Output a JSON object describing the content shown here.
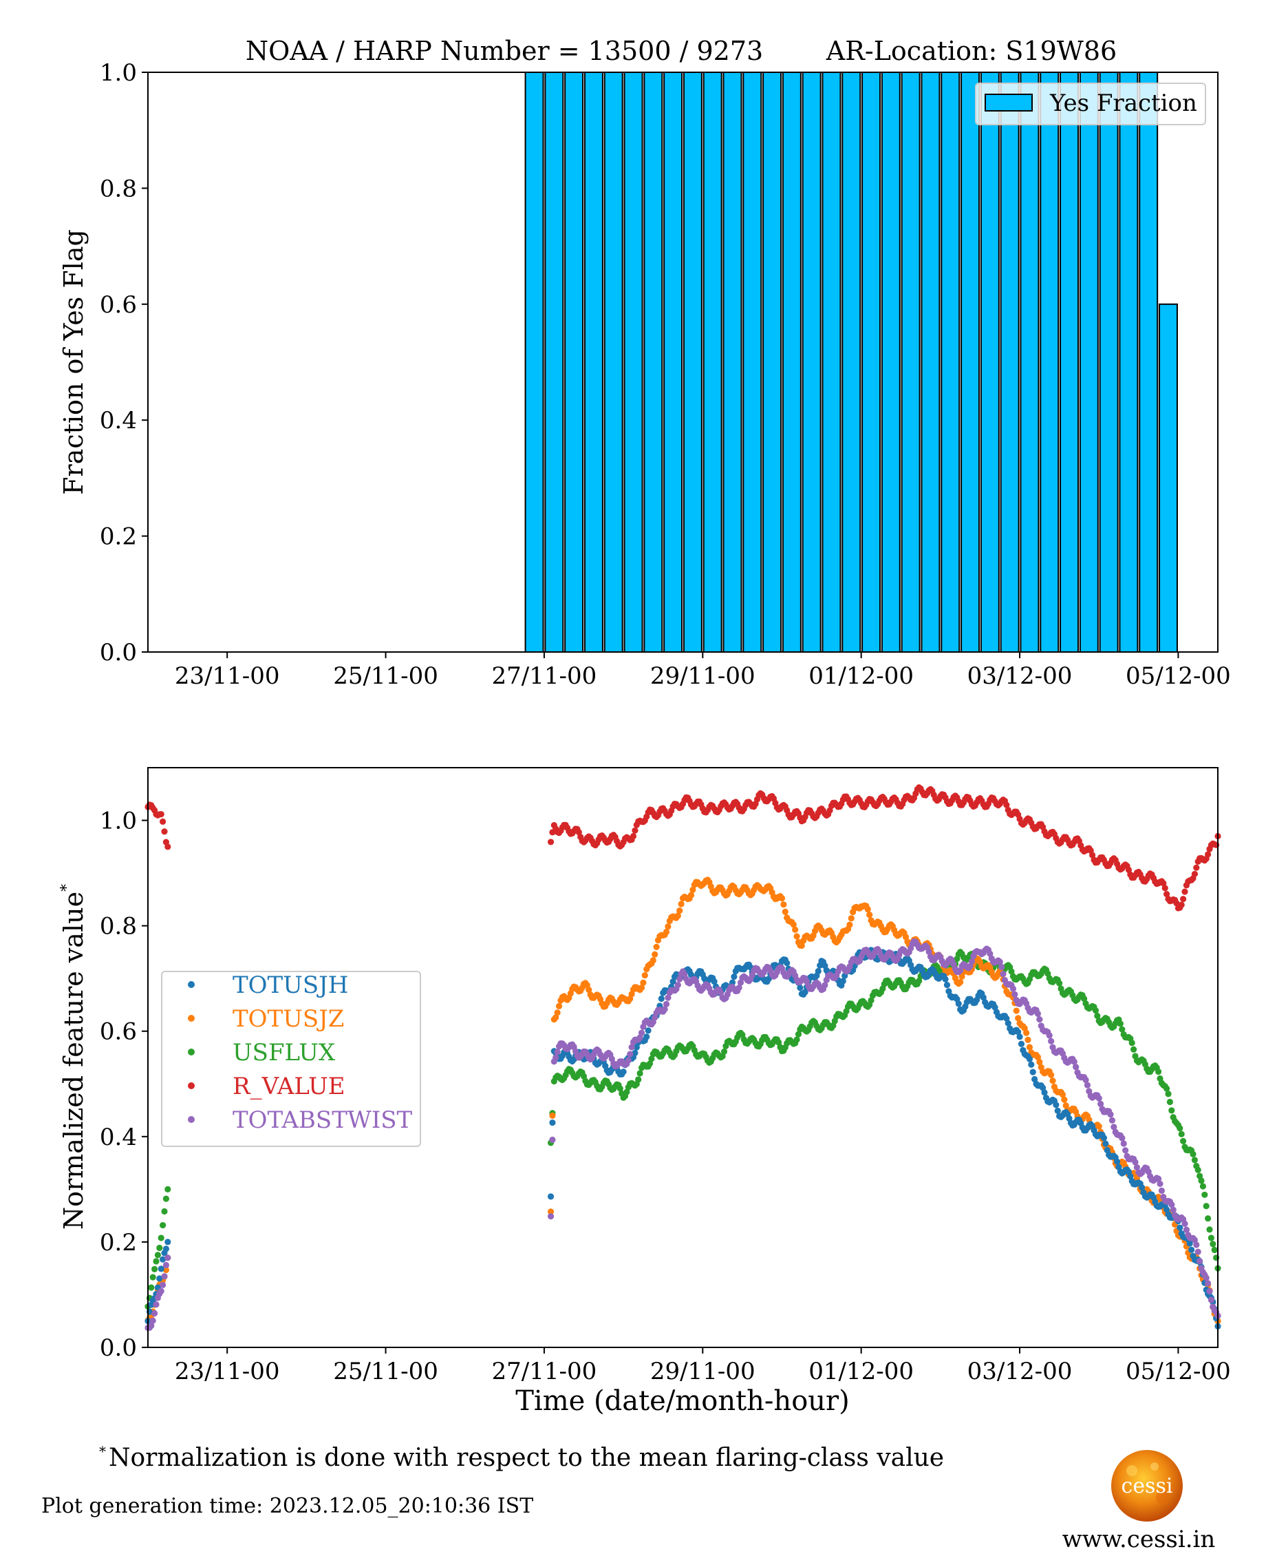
{
  "top_title": {
    "noaa_harp_label": "NOAA / HARP Number = 13500 / 9273",
    "location_label": "AR-Location: S19W86"
  },
  "footnote": {
    "marker": "*",
    "text": "Normalization is done with respect to the mean flaring-class value"
  },
  "generation_time": "Plot generation time: 2023.12.05_20:10:36 IST",
  "logo": {
    "text": "cessi",
    "icon": "sun-logo-icon"
  },
  "website": "www.cessi.in",
  "chart_data": [
    {
      "type": "bar",
      "ylabel": "Fraction of Yes Flag",
      "xlabel": "",
      "ylim": [
        0,
        1.0
      ],
      "xlim": [
        "22/11-00",
        "05/12-12"
      ],
      "y_ticks": [
        "0.0",
        "0.2",
        "0.4",
        "0.6",
        "0.8",
        "1.0"
      ],
      "x_ticks": [
        "23/11-00",
        "25/11-00",
        "27/11-00",
        "29/11-00",
        "01/12-00",
        "03/12-00",
        "05/12-00"
      ],
      "legend": {
        "position": "top-right",
        "entries": [
          "Yes Fraction"
        ]
      },
      "bar_color": "#00bfff",
      "bar_interval_hours": 6,
      "categories": [
        "26/11-18",
        "27/11-00",
        "27/11-06",
        "27/11-12",
        "27/11-18",
        "28/11-00",
        "28/11-06",
        "28/11-12",
        "28/11-18",
        "29/11-00",
        "29/11-06",
        "29/11-12",
        "29/11-18",
        "30/11-00",
        "30/11-06",
        "30/11-12",
        "30/11-18",
        "01/12-00",
        "01/12-06",
        "01/12-12",
        "01/12-18",
        "02/12-00",
        "02/12-06",
        "02/12-12",
        "02/12-18",
        "03/12-00",
        "03/12-06",
        "03/12-12",
        "03/12-18",
        "04/12-00",
        "04/12-06",
        "04/12-12",
        "04/12-18"
      ],
      "values": [
        1,
        1,
        1,
        1,
        1,
        1,
        1,
        1,
        1,
        1,
        1,
        1,
        1,
        1,
        1,
        1,
        1,
        1,
        1,
        1,
        1,
        1,
        1,
        1,
        1,
        1,
        1,
        1,
        1,
        1,
        1,
        1,
        0.6
      ]
    },
    {
      "type": "scatter",
      "ylabel": "Normalized feature value",
      "ylabel_marker": "*",
      "xlabel": "Time (date/month-hour)",
      "ylim": [
        0,
        1.1
      ],
      "xlim": [
        "22/11-00",
        "05/12-12"
      ],
      "y_ticks": [
        "0.0",
        "0.2",
        "0.4",
        "0.6",
        "0.8",
        "1.0"
      ],
      "x_ticks": [
        "23/11-00",
        "25/11-00",
        "27/11-00",
        "29/11-00",
        "01/12-00",
        "03/12-00",
        "05/12-00"
      ],
      "legend": {
        "position": "center-left"
      },
      "series": [
        {
          "name": "TOTUSJH",
          "color": "#1f77b4",
          "segments": [
            {
              "x": [
                "22/11-00",
                "22/11-02",
                "22/11-04",
                "22/11-06"
              ],
              "y": [
                0.05,
                0.09,
                0.14,
                0.2
              ]
            },
            {
              "x": [
                "27/11-02",
                "27/11-03",
                "27/11-06",
                "27/11-12",
                "27/11-18",
                "28/11-00",
                "28/11-06",
                "28/11-12",
                "28/11-18",
                "29/11-00",
                "29/11-06",
                "29/11-12",
                "29/11-18",
                "30/11-00",
                "30/11-06",
                "30/11-12",
                "30/11-18",
                "01/12-00",
                "01/12-06",
                "01/12-12",
                "01/12-18",
                "02/12-00",
                "02/12-06",
                "02/12-12",
                "02/12-18",
                "03/12-00",
                "03/12-06",
                "03/12-12",
                "03/12-18",
                "04/12-00",
                "04/12-06",
                "04/12-12",
                "04/12-18",
                "05/12-00",
                "05/12-06",
                "05/12-12"
              ],
              "y": [
                0.28,
                0.55,
                0.56,
                0.55,
                0.54,
                0.52,
                0.59,
                0.66,
                0.72,
                0.7,
                0.68,
                0.72,
                0.7,
                0.73,
                0.68,
                0.72,
                0.7,
                0.74,
                0.75,
                0.73,
                0.72,
                0.7,
                0.65,
                0.66,
                0.64,
                0.58,
                0.5,
                0.44,
                0.43,
                0.4,
                0.35,
                0.3,
                0.28,
                0.23,
                0.17,
                0.04
              ]
            }
          ]
        },
        {
          "name": "TOTUSJZ",
          "color": "#ff7f0e",
          "segments": [
            {
              "x": [
                "22/11-00",
                "22/11-02",
                "22/11-04",
                "22/11-06"
              ],
              "y": [
                0.04,
                0.08,
                0.12,
                0.17
              ]
            },
            {
              "x": [
                "27/11-02",
                "27/11-03",
                "27/11-06",
                "27/11-12",
                "27/11-18",
                "28/11-00",
                "28/11-06",
                "28/11-12",
                "28/11-18",
                "29/11-00",
                "29/11-06",
                "29/11-12",
                "29/11-18",
                "30/11-00",
                "30/11-06",
                "30/11-12",
                "30/11-18",
                "01/12-00",
                "01/12-06",
                "01/12-12",
                "01/12-18",
                "02/12-00",
                "02/12-06",
                "02/12-12",
                "02/12-18",
                "03/12-00",
                "03/12-06",
                "03/12-12",
                "03/12-18",
                "04/12-00",
                "04/12-06",
                "04/12-12",
                "04/12-18",
                "05/12-00",
                "05/12-06",
                "05/12-12"
              ],
              "y": [
                0.25,
                0.63,
                0.67,
                0.68,
                0.66,
                0.65,
                0.7,
                0.78,
                0.85,
                0.88,
                0.87,
                0.86,
                0.88,
                0.84,
                0.77,
                0.79,
                0.78,
                0.84,
                0.8,
                0.78,
                0.77,
                0.73,
                0.7,
                0.73,
                0.71,
                0.62,
                0.54,
                0.48,
                0.44,
                0.41,
                0.35,
                0.31,
                0.28,
                0.22,
                0.16,
                0.05
              ]
            }
          ]
        },
        {
          "name": "USFLUX",
          "color": "#2ca02c",
          "segments": [
            {
              "x": [
                "22/11-00",
                "22/11-02",
                "22/11-04",
                "22/11-06"
              ],
              "y": [
                0.08,
                0.14,
                0.22,
                0.3
              ]
            },
            {
              "x": [
                "27/11-02",
                "27/11-03",
                "27/11-06",
                "27/11-12",
                "27/11-18",
                "28/11-00",
                "28/11-06",
                "28/11-12",
                "28/11-18",
                "29/11-00",
                "29/11-06",
                "29/11-12",
                "29/11-18",
                "30/11-00",
                "30/11-06",
                "30/11-12",
                "30/11-18",
                "01/12-00",
                "01/12-06",
                "01/12-12",
                "01/12-18",
                "02/12-00",
                "02/12-06",
                "02/12-12",
                "02/12-18",
                "03/12-00",
                "03/12-06",
                "03/12-12",
                "03/12-18",
                "04/12-00",
                "04/12-06",
                "04/12-12",
                "04/12-18",
                "05/12-00",
                "05/12-06",
                "05/12-12"
              ],
              "y": [
                0.4,
                0.51,
                0.52,
                0.51,
                0.5,
                0.48,
                0.53,
                0.56,
                0.57,
                0.55,
                0.56,
                0.59,
                0.58,
                0.57,
                0.6,
                0.61,
                0.63,
                0.65,
                0.68,
                0.69,
                0.7,
                0.72,
                0.74,
                0.73,
                0.72,
                0.7,
                0.71,
                0.69,
                0.66,
                0.63,
                0.61,
                0.55,
                0.52,
                0.42,
                0.34,
                0.15
              ]
            }
          ]
        },
        {
          "name": "R_VALUE",
          "color": "#d62728",
          "segments": [
            {
              "x": [
                "22/11-00",
                "22/11-02",
                "22/11-04",
                "22/11-06"
              ],
              "y": [
                1.02,
                1.03,
                1.01,
                0.95
              ]
            },
            {
              "x": [
                "27/11-02",
                "27/11-03",
                "27/11-06",
                "27/11-12",
                "27/11-18",
                "28/11-00",
                "28/11-06",
                "28/11-12",
                "28/11-18",
                "29/11-00",
                "29/11-06",
                "29/11-12",
                "29/11-18",
                "30/11-00",
                "30/11-06",
                "30/11-12",
                "30/11-18",
                "01/12-00",
                "01/12-06",
                "01/12-12",
                "01/12-18",
                "02/12-00",
                "02/12-06",
                "02/12-12",
                "02/12-18",
                "03/12-00",
                "03/12-06",
                "03/12-12",
                "03/12-18",
                "04/12-00",
                "04/12-06",
                "04/12-12",
                "04/12-18",
                "05/12-00",
                "05/12-06",
                "05/12-12"
              ],
              "y": [
                0.96,
                0.99,
                0.98,
                0.97,
                0.96,
                0.96,
                1.0,
                1.02,
                1.03,
                1.03,
                1.02,
                1.03,
                1.04,
                1.03,
                1.0,
                1.02,
                1.03,
                1.04,
                1.03,
                1.04,
                1.05,
                1.05,
                1.03,
                1.04,
                1.03,
                1.01,
                0.98,
                0.97,
                0.95,
                0.93,
                0.91,
                0.9,
                0.88,
                0.84,
                0.91,
                0.97
              ]
            }
          ]
        },
        {
          "name": "TOTABSTWIST",
          "color": "#9467bd",
          "segments": [
            {
              "x": [
                "22/11-00",
                "22/11-02",
                "22/11-04",
                "22/11-06"
              ],
              "y": [
                0.04,
                0.07,
                0.11,
                0.17
              ]
            },
            {
              "x": [
                "27/11-02",
                "27/11-03",
                "27/11-06",
                "27/11-12",
                "27/11-18",
                "28/11-00",
                "28/11-06",
                "28/11-12",
                "28/11-18",
                "29/11-00",
                "29/11-06",
                "29/11-12",
                "29/11-18",
                "30/11-00",
                "30/11-06",
                "30/11-12",
                "30/11-18",
                "01/12-00",
                "01/12-06",
                "01/12-12",
                "01/12-18",
                "02/12-00",
                "02/12-06",
                "02/12-12",
                "02/12-18",
                "03/12-00",
                "03/12-06",
                "03/12-12",
                "03/12-18",
                "04/12-00",
                "04/12-06",
                "04/12-12",
                "04/12-18",
                "05/12-00",
                "05/12-06",
                "05/12-12"
              ],
              "y": [
                0.25,
                0.55,
                0.57,
                0.56,
                0.55,
                0.54,
                0.6,
                0.65,
                0.7,
                0.69,
                0.66,
                0.7,
                0.71,
                0.72,
                0.69,
                0.69,
                0.71,
                0.75,
                0.74,
                0.75,
                0.76,
                0.74,
                0.71,
                0.76,
                0.72,
                0.66,
                0.62,
                0.56,
                0.52,
                0.47,
                0.4,
                0.34,
                0.31,
                0.25,
                0.18,
                0.06
              ]
            }
          ]
        }
      ]
    }
  ]
}
